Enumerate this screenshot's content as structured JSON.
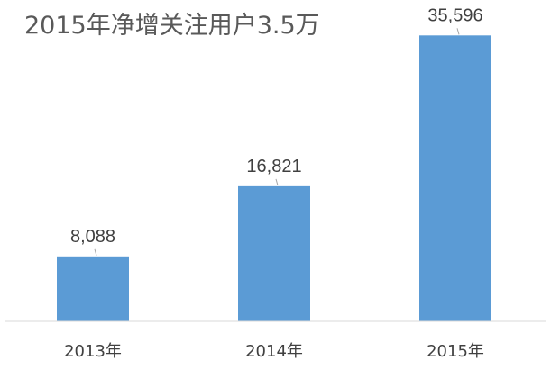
{
  "chart_data": {
    "type": "bar",
    "title": "2015年净增关注用户3.5万",
    "categories": [
      "2013年",
      "2014年",
      "2015年"
    ],
    "values": [
      8088,
      16821,
      35596
    ],
    "value_labels": [
      "8,088",
      "16,821",
      "35,596"
    ],
    "xlabel": "",
    "ylabel": "",
    "ylim": [
      0,
      40000
    ],
    "grid": false,
    "legend": "none",
    "bar_color": "#5b9bd5"
  }
}
